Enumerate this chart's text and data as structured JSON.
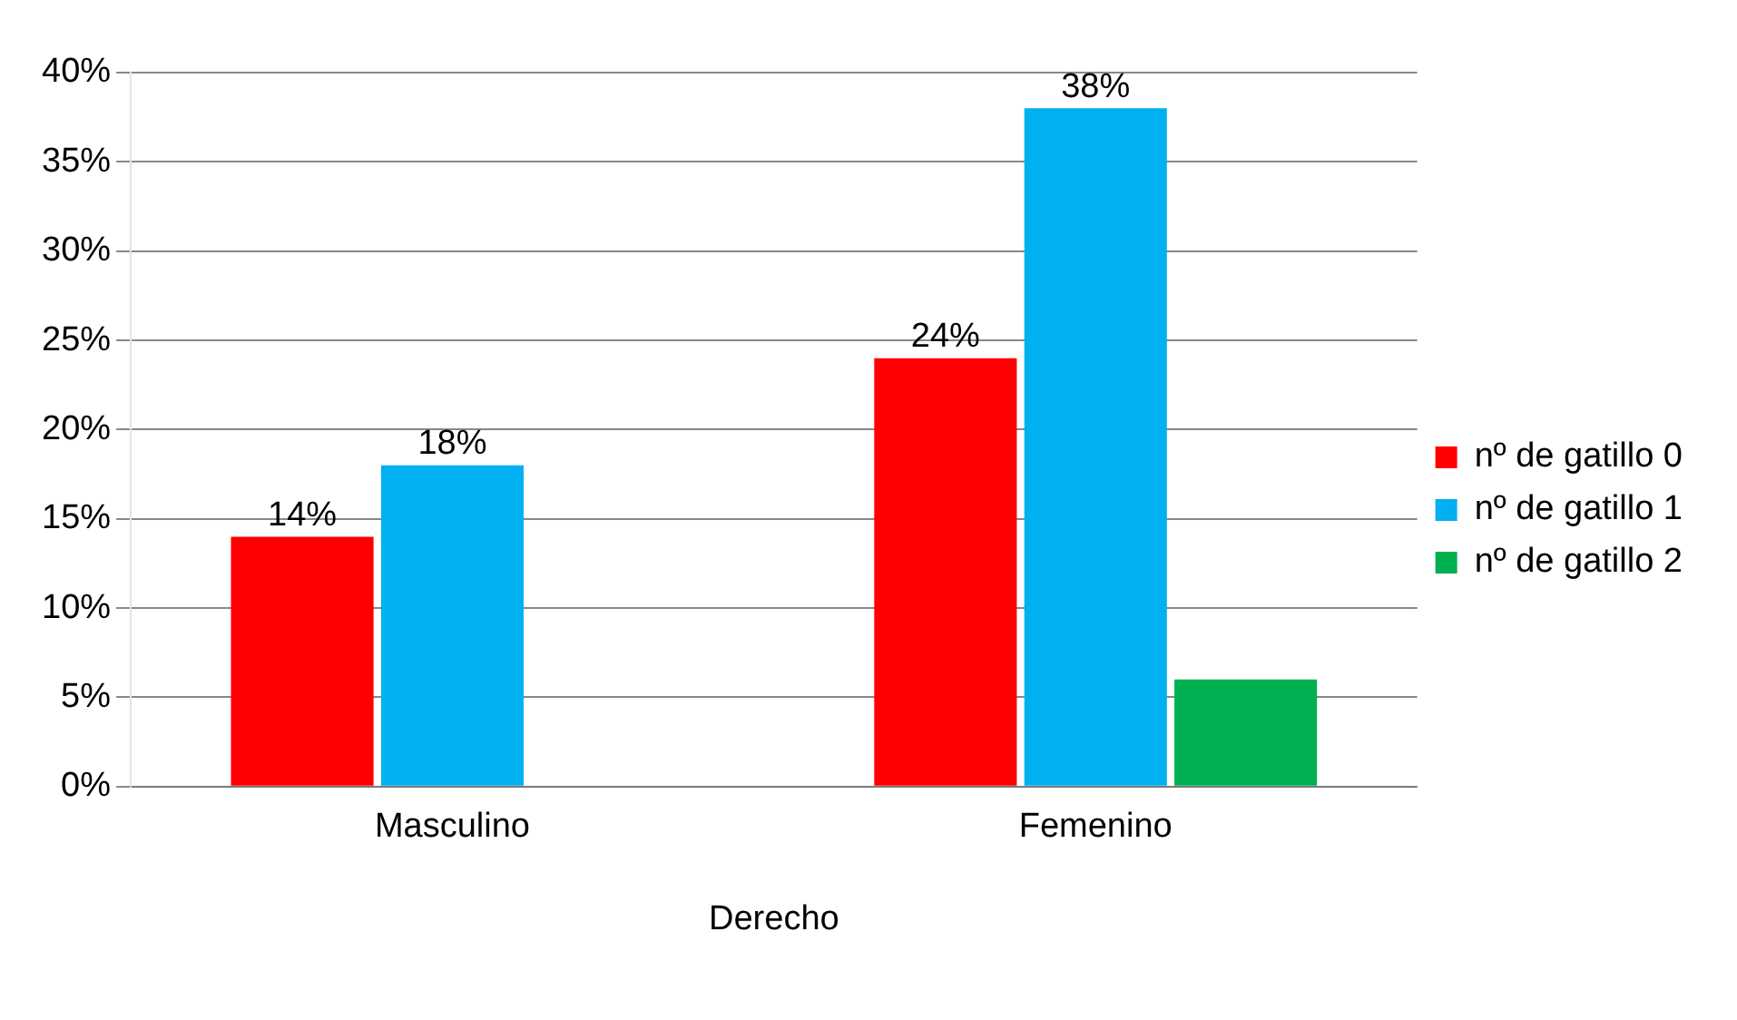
{
  "chart_data": {
    "type": "bar",
    "categories": [
      "Masculino",
      "Femenino"
    ],
    "xlabel": "Derecho",
    "series": [
      {
        "name": "nº de gatillo 0",
        "color": "#ff0000",
        "values": [
          14,
          24
        ],
        "value_labels": [
          "14%",
          "24%"
        ]
      },
      {
        "name": "nº de gatillo 1",
        "color": "#00b0f0",
        "values": [
          18,
          38
        ],
        "value_labels": [
          "18%",
          "38%"
        ]
      },
      {
        "name": "nº de gatillo 2",
        "color": "#00b050",
        "values": [
          0,
          6
        ],
        "value_labels": [
          null,
          null
        ]
      }
    ],
    "ylim": [
      0,
      40
    ],
    "yticks": [
      {
        "value": 0,
        "label": "0%"
      },
      {
        "value": 5,
        "label": "5%"
      },
      {
        "value": 10,
        "label": "10%"
      },
      {
        "value": 15,
        "label": "15%"
      },
      {
        "value": 20,
        "label": "20%"
      },
      {
        "value": 25,
        "label": "25%"
      },
      {
        "value": 30,
        "label": "30%"
      },
      {
        "value": 35,
        "label": "35%"
      },
      {
        "value": 40,
        "label": "40%"
      }
    ],
    "grid": "y",
    "legend": "right"
  }
}
